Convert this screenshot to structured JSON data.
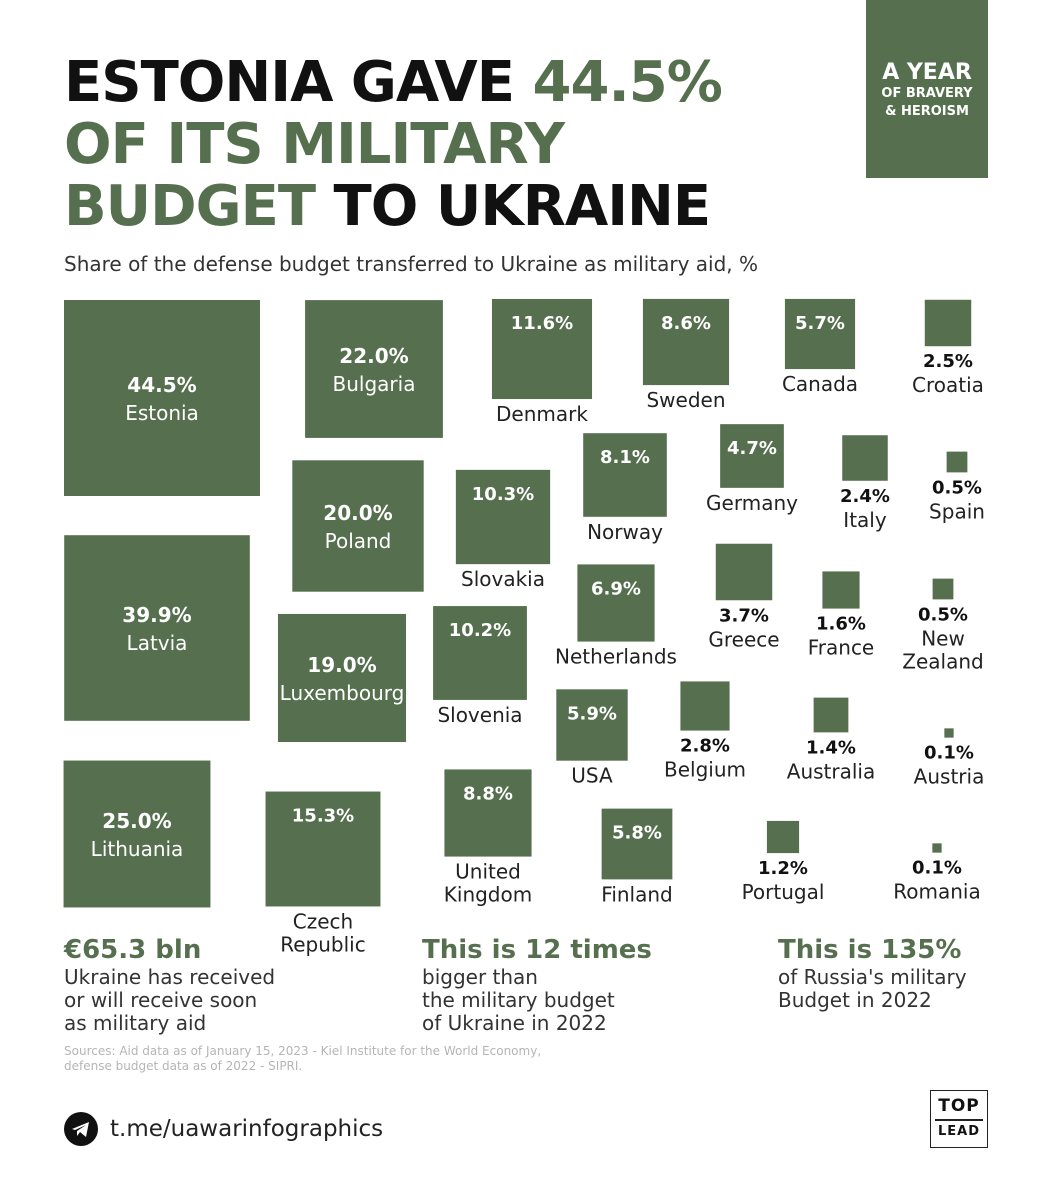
{
  "title": {
    "line1_black": "ESTONIA GAVE ",
    "line1_green": "44.5%",
    "line2_green": "OF ITS MILITARY",
    "line3_green": "BUDGET",
    "line3_black": " TO UKRAINE"
  },
  "badge": {
    "line1": "A YEAR",
    "line2": "OF BRAVERY",
    "line3": "& HEROISM"
  },
  "subtitle": "Share of the defense budget transferred to Ukraine as military aid, %",
  "colors": {
    "accent": "#56704f",
    "text": "#111111"
  },
  "chart_data": {
    "type": "proportional-squares",
    "unit": "%",
    "items": [
      {
        "country": "Estonia",
        "value": 44.5,
        "label": "44.5%"
      },
      {
        "country": "Latvia",
        "value": 39.9,
        "label": "39.9%"
      },
      {
        "country": "Lithuania",
        "value": 25.0,
        "label": "25.0%"
      },
      {
        "country": "Bulgaria",
        "value": 22.0,
        "label": "22.0%"
      },
      {
        "country": "Poland",
        "value": 20.0,
        "label": "20.0%"
      },
      {
        "country": "Luxembourg",
        "value": 19.0,
        "label": "19.0%"
      },
      {
        "country": "Czech Republic",
        "value": 15.3,
        "label": "15.3%"
      },
      {
        "country": "Denmark",
        "value": 11.6,
        "label": "11.6%"
      },
      {
        "country": "Slovakia",
        "value": 10.3,
        "label": "10.3%"
      },
      {
        "country": "Slovenia",
        "value": 10.2,
        "label": "10.2%"
      },
      {
        "country": "United Kingdom",
        "value": 8.8,
        "label": "8.8%"
      },
      {
        "country": "Sweden",
        "value": 8.6,
        "label": "8.6%"
      },
      {
        "country": "Norway",
        "value": 8.1,
        "label": "8.1%"
      },
      {
        "country": "Netherlands",
        "value": 6.9,
        "label": "6.9%"
      },
      {
        "country": "USA",
        "value": 5.9,
        "label": "5.9%"
      },
      {
        "country": "Finland",
        "value": 5.8,
        "label": "5.8%"
      },
      {
        "country": "Canada",
        "value": 5.7,
        "label": "5.7%"
      },
      {
        "country": "Germany",
        "value": 4.7,
        "label": "4.7%"
      },
      {
        "country": "Greece",
        "value": 3.7,
        "label": "3.7%"
      },
      {
        "country": "Belgium",
        "value": 2.8,
        "label": "2.8%"
      },
      {
        "country": "Croatia",
        "value": 2.5,
        "label": "2.5%"
      },
      {
        "country": "Italy",
        "value": 2.4,
        "label": "2.4%"
      },
      {
        "country": "France",
        "value": 1.6,
        "label": "1.6%"
      },
      {
        "country": "Australia",
        "value": 1.4,
        "label": "1.4%"
      },
      {
        "country": "Portugal",
        "value": 1.2,
        "label": "1.2%"
      },
      {
        "country": "Spain",
        "value": 0.5,
        "label": "0.5%"
      },
      {
        "country": "New Zealand",
        "value": 0.5,
        "label": "0.5%"
      },
      {
        "country": "Austria",
        "value": 0.1,
        "label": "0.1%"
      },
      {
        "country": "Romania",
        "value": 0.1,
        "label": "0.1%"
      }
    ]
  },
  "stats": [
    {
      "big": "€65.3 bln",
      "small": "Ukraine has received\nor will receive soon\nas military aid"
    },
    {
      "big": "This is 12 times",
      "small": "bigger than\nthe military budget\nof Ukraine in 2022"
    },
    {
      "big": "This is 135%",
      "small": "of Russia's military\nBudget in 2022"
    }
  ],
  "sources": "Sources: Aid data as of January 15, 2023 - Kiel Institute for the World Economy,\ndefense budget data as of 2022 - SIPRI.",
  "footer": {
    "link": "t.me/uawarinfographics",
    "icon": "telegram-icon"
  },
  "logo": {
    "top": "TOP",
    "bottom": "LEAD"
  }
}
